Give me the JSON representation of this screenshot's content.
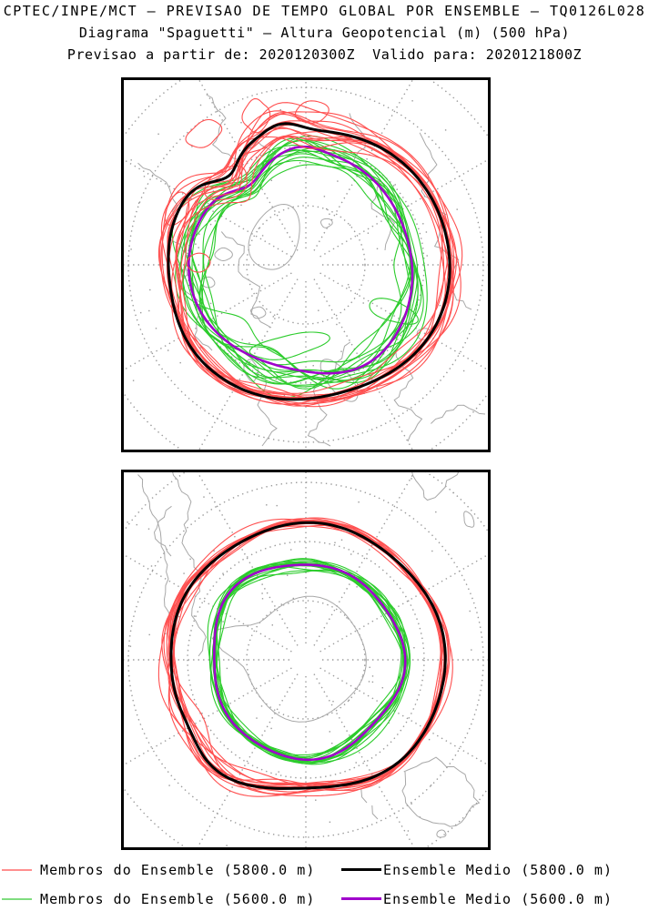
{
  "header": {
    "line1": "CPTEC/INPE/MCT — PREVISAO DE TEMPO GLOBAL POR ENSEMBLE — TQ0126L028",
    "line2": "Diagrama \"Spaguetti\" — Altura Geopotencial (m) (500 hPa)",
    "line3": "Previsao a partir de: 2020120300Z  Valido para: 2020121800Z"
  },
  "colors": {
    "background": "#ffffff",
    "border": "#000000",
    "graticule": "#9a9a9a",
    "coastline": "#a8a8a8",
    "members_5800": "#ff5050",
    "mean_5800": "#000000",
    "members_5600": "#2ccc2c",
    "mean_5600": "#a000cc"
  },
  "legend": {
    "rows": [
      [
        {
          "label": "Membros do Ensemble (5800.0 m)",
          "color": "#ff8f8f",
          "style": "member"
        },
        {
          "label": "Ensemble Medio (5800.0 m)",
          "color": "#000000",
          "style": "mean"
        }
      ],
      [
        {
          "label": "Membros do Ensemble (5600.0 m)",
          "color": "#7fdd7f",
          "style": "member"
        },
        {
          "label": "Ensemble Medio (5600.0 m)",
          "color": "#a000cc",
          "style": "mean"
        }
      ]
    ]
  },
  "chart_data": [
    {
      "type": "line",
      "hemisphere": "north",
      "projection": "polar-stereographic",
      "variable": "Altura Geopotencial (m)",
      "level_hPa": 500,
      "contour_levels_m": [
        5800.0,
        5600.0
      ],
      "series": [
        {
          "name": "Membros do Ensemble (5800.0 m)",
          "role": "ensemble-members",
          "contour_m": 5800.0,
          "member_count": 15,
          "color": "#ff5050",
          "line_width": 1.1,
          "z": 3,
          "shape": {
            "base_radius": 152,
            "member_amp": 0.055,
            "offset_spread": 0.022,
            "seed": 101,
            "harmonics": [
              {
                "k": 1,
                "a": 0.02,
                "p": 2.2
              },
              {
                "k": 2,
                "a": 0.028,
                "p": 0.7
              },
              {
                "k": 3,
                "a": 0.02,
                "p": 2.0
              },
              {
                "k": 4,
                "a": 0.014,
                "p": 4.2
              }
            ],
            "gaussians": [
              {
                "mu": 100,
                "amp": 0.07,
                "sig": 10
              },
              {
                "mu": 131,
                "amp": -0.13,
                "sig": 11
              },
              {
                "mu": 165,
                "amp": 0.035,
                "sig": 22
              },
              {
                "mu": 235,
                "amp": -0.03,
                "sig": 25
              }
            ],
            "envelope": {
              "center": 130,
              "sigma": 55,
              "amp": 1.6
            }
          }
        },
        {
          "name": "Ensemble Medio (5800.0 m)",
          "role": "ensemble-mean",
          "contour_m": 5800.0,
          "member_count": 1,
          "color": "#000000",
          "line_width": 3,
          "z": 4,
          "shape": {
            "base_radius": 152,
            "member_amp": 0,
            "offset_spread": 0,
            "seed": 102,
            "harmonics": [
              {
                "k": 1,
                "a": 0.02,
                "p": 2.2
              },
              {
                "k": 2,
                "a": 0.028,
                "p": 0.7
              },
              {
                "k": 3,
                "a": 0.02,
                "p": 2.0
              },
              {
                "k": 4,
                "a": 0.014,
                "p": 4.2
              }
            ],
            "gaussians": [
              {
                "mu": 100,
                "amp": 0.07,
                "sig": 10
              },
              {
                "mu": 131,
                "amp": -0.13,
                "sig": 11
              },
              {
                "mu": 165,
                "amp": 0.035,
                "sig": 22
              },
              {
                "mu": 235,
                "amp": -0.03,
                "sig": 25
              }
            ],
            "envelope": null
          }
        },
        {
          "name": "Membros do Ensemble (5600.0 m)",
          "role": "ensemble-members",
          "contour_m": 5600.0,
          "member_count": 15,
          "color": "#2ccc2c",
          "line_width": 1.1,
          "z": 1,
          "shape": {
            "base_radius": 121,
            "member_amp": 0.09,
            "offset_spread": 0.05,
            "seed": 103,
            "harmonics": [
              {
                "k": 1,
                "a": 0.035,
                "p": 5.2
              },
              {
                "k": 2,
                "a": 0.02,
                "p": 2.4
              },
              {
                "k": 3,
                "a": 0.028,
                "p": 3.9
              }
            ],
            "gaussians": [
              {
                "mu": 125,
                "amp": -0.13,
                "sig": 14
              },
              {
                "mu": 92,
                "amp": 0.05,
                "sig": 12
              },
              {
                "mu": 298,
                "amp": 0.06,
                "sig": 26
              }
            ],
            "envelope": {
              "center": 250,
              "sigma": 80,
              "amp": 0.8
            }
          }
        },
        {
          "name": "Ensemble Medio (5600.0 m)",
          "role": "ensemble-mean",
          "contour_m": 5600.0,
          "member_count": 1,
          "color": "#a000cc",
          "line_width": 2.6,
          "z": 2,
          "shape": {
            "base_radius": 121,
            "member_amp": 0,
            "offset_spread": 0,
            "seed": 104,
            "harmonics": [
              {
                "k": 1,
                "a": 0.035,
                "p": 5.2
              },
              {
                "k": 2,
                "a": 0.02,
                "p": 2.4
              },
              {
                "k": 3,
                "a": 0.028,
                "p": 3.9
              }
            ],
            "gaussians": [
              {
                "mu": 125,
                "amp": -0.13,
                "sig": 14
              },
              {
                "mu": 92,
                "amp": 0.05,
                "sig": 12
              },
              {
                "mu": 298,
                "amp": 0.06,
                "sig": 26
              }
            ],
            "envelope": null
          }
        }
      ]
    },
    {
      "type": "line",
      "hemisphere": "south",
      "projection": "polar-stereographic",
      "variable": "Altura Geopotencial (m)",
      "level_hPa": 500,
      "contour_levels_m": [
        5800.0,
        5600.0
      ],
      "series": [
        {
          "name": "Membros do Ensemble (5800.0 m)",
          "role": "ensemble-members",
          "contour_m": 5800.0,
          "member_count": 15,
          "color": "#ff5050",
          "line_width": 1.1,
          "z": 3,
          "shape": {
            "base_radius": 150,
            "member_amp": 0.035,
            "offset_spread": 0.016,
            "seed": 201,
            "harmonics": [
              {
                "k": 2,
                "a": 0.018,
                "p": 1.1
              },
              {
                "k": 3,
                "a": 0.022,
                "p": 2.6
              },
              {
                "k": 4,
                "a": 0.012,
                "p": 4.4
              },
              {
                "k": 5,
                "a": 0.015,
                "p": 0.4
              }
            ],
            "gaussians": [
              {
                "mu": 212,
                "amp": -0.045,
                "sig": 15
              }
            ],
            "envelope": {
              "center": 215,
              "sigma": 50,
              "amp": 1.3
            }
          }
        },
        {
          "name": "Ensemble Medio (5800.0 m)",
          "role": "ensemble-mean",
          "contour_m": 5800.0,
          "member_count": 1,
          "color": "#000000",
          "line_width": 3,
          "z": 4,
          "shape": {
            "base_radius": 150,
            "member_amp": 0,
            "offset_spread": 0,
            "seed": 202,
            "harmonics": [
              {
                "k": 2,
                "a": 0.018,
                "p": 1.1
              },
              {
                "k": 3,
                "a": 0.022,
                "p": 2.6
              },
              {
                "k": 4,
                "a": 0.012,
                "p": 4.4
              },
              {
                "k": 5,
                "a": 0.015,
                "p": 0.4
              }
            ],
            "gaussians": [
              {
                "mu": 212,
                "amp": -0.045,
                "sig": 15
              }
            ],
            "envelope": null
          }
        },
        {
          "name": "Membros do Ensemble (5600.0 m)",
          "role": "ensemble-members",
          "contour_m": 5600.0,
          "member_count": 15,
          "color": "#2ccc2c",
          "line_width": 1.1,
          "z": 1,
          "shape": {
            "base_radius": 106,
            "member_amp": 0.05,
            "offset_spread": 0.02,
            "seed": 203,
            "harmonics": [
              {
                "k": 2,
                "a": 0.015,
                "p": 3.9
              },
              {
                "k": 3,
                "a": 0.028,
                "p": 1.0
              },
              {
                "k": 5,
                "a": 0.02,
                "p": 2.1
              }
            ],
            "gaussians": [],
            "envelope": null
          }
        },
        {
          "name": "Ensemble Medio (5600.0 m)",
          "role": "ensemble-mean",
          "contour_m": 5600.0,
          "member_count": 1,
          "color": "#a000cc",
          "line_width": 2.6,
          "z": 2,
          "shape": {
            "base_radius": 106,
            "member_amp": 0,
            "offset_spread": 0,
            "seed": 204,
            "harmonics": [
              {
                "k": 2,
                "a": 0.015,
                "p": 3.9
              },
              {
                "k": 3,
                "a": 0.028,
                "p": 1.0
              },
              {
                "k": 5,
                "a": 0.02,
                "p": 2.1
              }
            ],
            "gaussians": [],
            "envelope": null
          }
        }
      ]
    }
  ]
}
